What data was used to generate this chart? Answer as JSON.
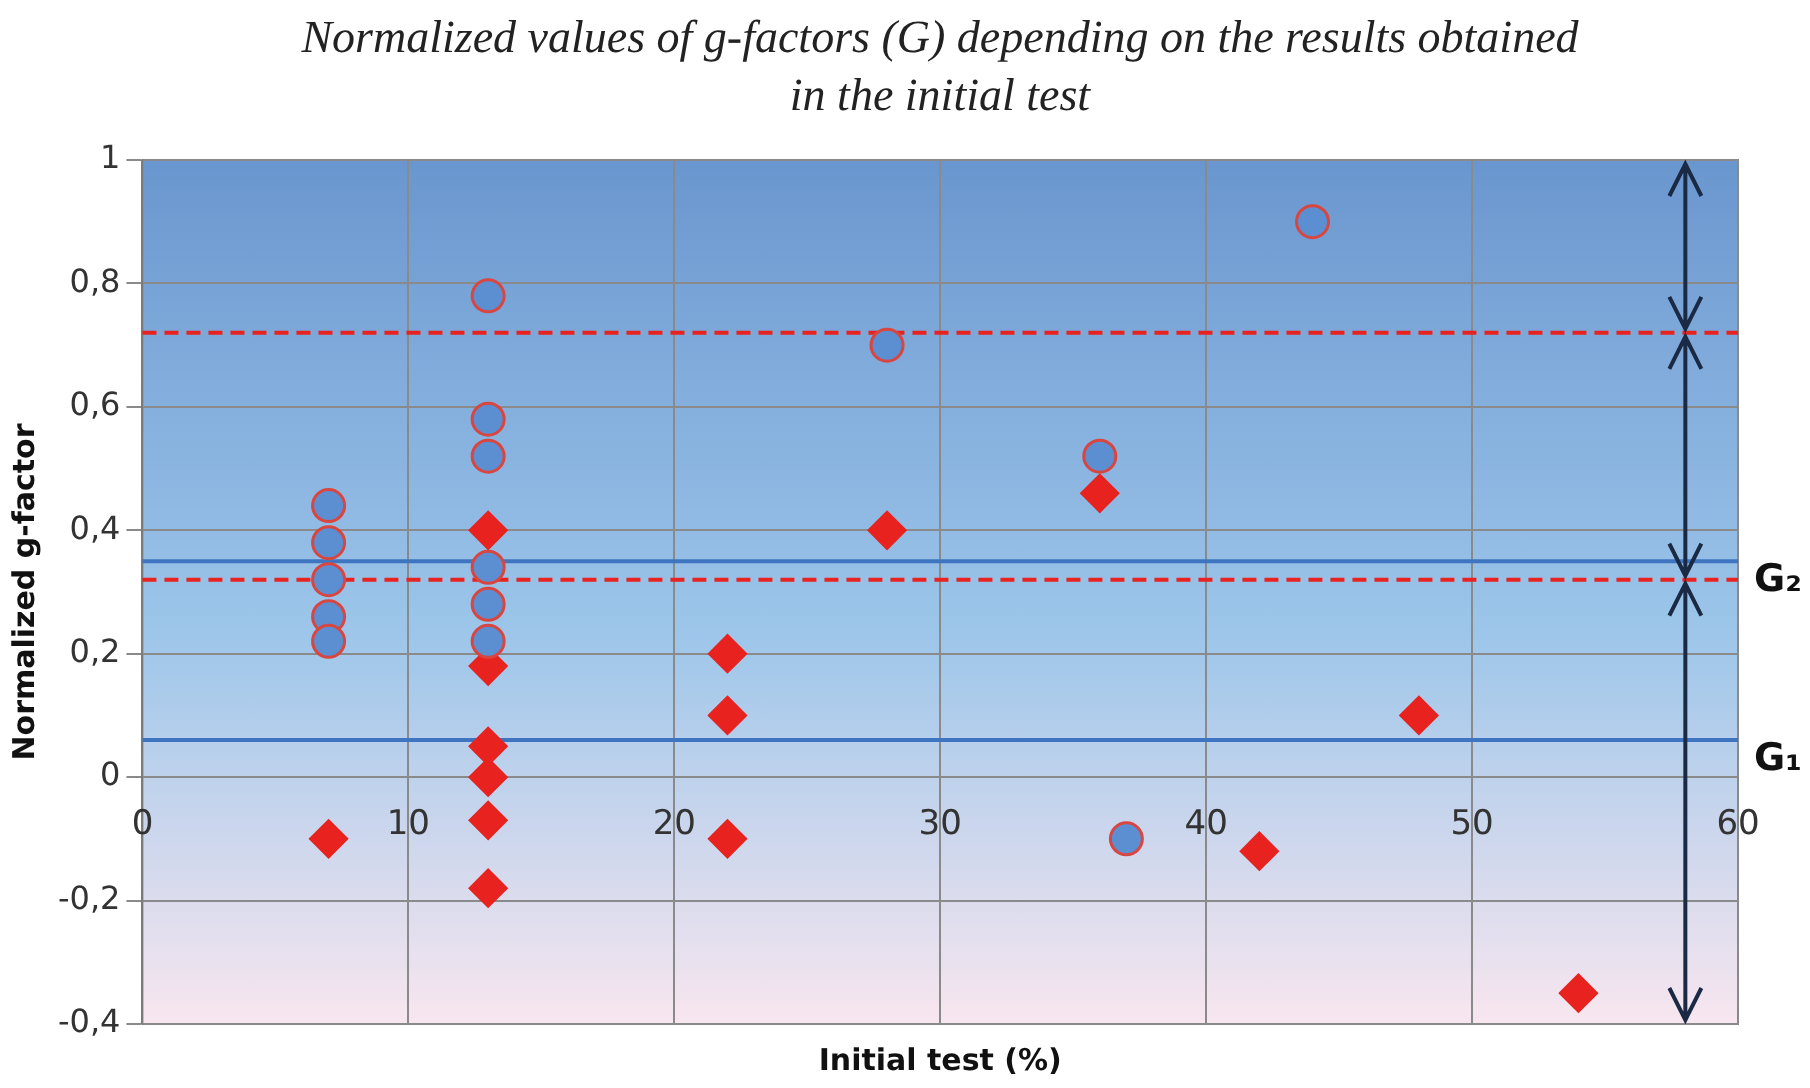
{
  "chart_data": {
    "type": "scatter",
    "title": "Normalized values of g-factors (G) depending on the results obtained in the initial test",
    "xlabel": "Initial test (%)",
    "ylabel": "Normalized g-factor",
    "xlim": [
      0,
      60
    ],
    "xticks": [
      0,
      10,
      20,
      30,
      40,
      50,
      60
    ],
    "ylim": [
      -0.4,
      1
    ],
    "yticks": [
      {
        "value": -0.4,
        "label": "-0,4"
      },
      {
        "value": -0.2,
        "label": "-0,2"
      },
      0,
      {
        "value": 0.2,
        "label": "0,2"
      },
      {
        "value": 0.4,
        "label": "0,4"
      },
      {
        "value": 0.6,
        "label": "0,6"
      },
      {
        "value": 0.8,
        "label": "0,8"
      },
      1
    ],
    "grid": true,
    "legend": false,
    "series": [
      {
        "marker": "circle",
        "color": "#5b8fd2",
        "x": [
          7,
          7,
          7,
          7,
          7,
          13,
          13,
          13,
          13,
          13,
          13,
          28,
          36,
          37,
          44
        ],
        "values": [
          0.44,
          0.38,
          0.32,
          0.26,
          0.22,
          0.78,
          0.58,
          0.52,
          0.34,
          0.28,
          0.22,
          0.7,
          0.52,
          -0.1,
          0.9
        ]
      },
      {
        "marker": "diamond",
        "color": "#e8231f",
        "x": [
          7,
          13,
          13,
          13,
          13,
          13,
          13,
          22,
          22,
          22,
          28,
          36,
          42,
          48,
          54
        ],
        "values": [
          -0.1,
          0.4,
          0.18,
          0.05,
          0,
          -0.07,
          -0.18,
          0.2,
          0.1,
          -0.1,
          0.4,
          0.46,
          -0.12,
          0.1,
          -0.35
        ]
      }
    ],
    "ref_lines": [
      {
        "axis": "y",
        "value": 0.35,
        "label": "G₂",
        "color": "#3f74c0",
        "line_style": "solid"
      },
      {
        "axis": "y",
        "value": 0.06,
        "label": "G₁",
        "color": "#3f74c0",
        "line_style": "solid"
      },
      {
        "axis": "y",
        "value": 0.72,
        "color": "#e8231f",
        "line_style": "dashed"
      },
      {
        "axis": "y",
        "value": 0.32,
        "color": "#e8231f",
        "line_style": "dashed"
      }
    ]
  }
}
